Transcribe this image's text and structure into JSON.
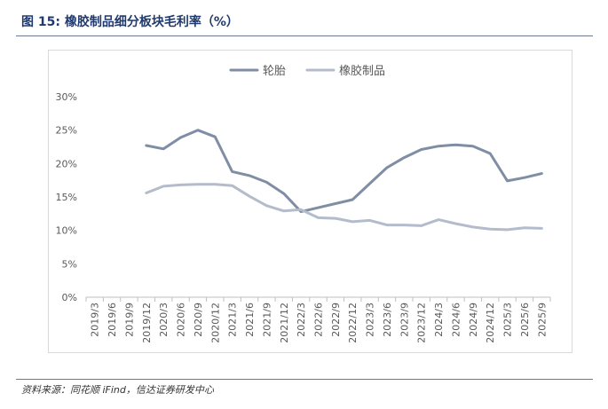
{
  "figure": {
    "title": "图 15:  橡胶制品细分板块毛利率（%）",
    "source": "资料来源：同花顺 iFind，信达证券研发中心"
  },
  "colors": {
    "title": "#1f3a6e",
    "series_tire": "#7f8ea5",
    "series_rubber": "#b4bccb",
    "axis": "#bfbfbf",
    "tick_text": "#595959"
  },
  "chart_data": {
    "type": "line",
    "title": "",
    "xlabel": "",
    "ylabel": "",
    "ylim": [
      0,
      30
    ],
    "yticks": [
      "0%",
      "5%",
      "10%",
      "15%",
      "20%",
      "25%",
      "30%"
    ],
    "ytick_values": [
      0,
      5,
      10,
      15,
      20,
      25,
      30
    ],
    "grid": false,
    "legend_position": "top-center",
    "categories": [
      "2019/3",
      "2019/6",
      "2019/9",
      "2019/12",
      "2020/3",
      "2020/6",
      "2020/9",
      "2020/12",
      "2021/3",
      "2021/6",
      "2021/9",
      "2021/12",
      "2022/3",
      "2022/6",
      "2022/9",
      "2022/12",
      "2023/3",
      "2023/6",
      "2023/9",
      "2023/12",
      "2024/3",
      "2024/6",
      "2024/9",
      "2024/12",
      "2025/3",
      "2025/6",
      "2025/9"
    ],
    "series": [
      {
        "name": "轮胎",
        "color": "#7f8ea5",
        "values": [
          null,
          null,
          null,
          22.7,
          22.2,
          23.9,
          25.0,
          24.0,
          18.8,
          18.2,
          17.2,
          15.5,
          12.8,
          13.4,
          14.0,
          14.6,
          17.0,
          19.4,
          20.9,
          22.1,
          22.6,
          22.8,
          22.6,
          21.5,
          17.4,
          17.9,
          18.5
        ]
      },
      {
        "name": "橡胶制品",
        "color": "#b4bccb",
        "values": [
          null,
          null,
          null,
          15.6,
          16.6,
          16.8,
          16.9,
          16.9,
          16.7,
          15.1,
          13.7,
          12.9,
          13.1,
          11.9,
          11.8,
          11.3,
          11.5,
          10.8,
          10.8,
          10.7,
          11.6,
          11.0,
          10.5,
          10.2,
          10.1,
          10.4,
          10.3
        ]
      }
    ]
  }
}
